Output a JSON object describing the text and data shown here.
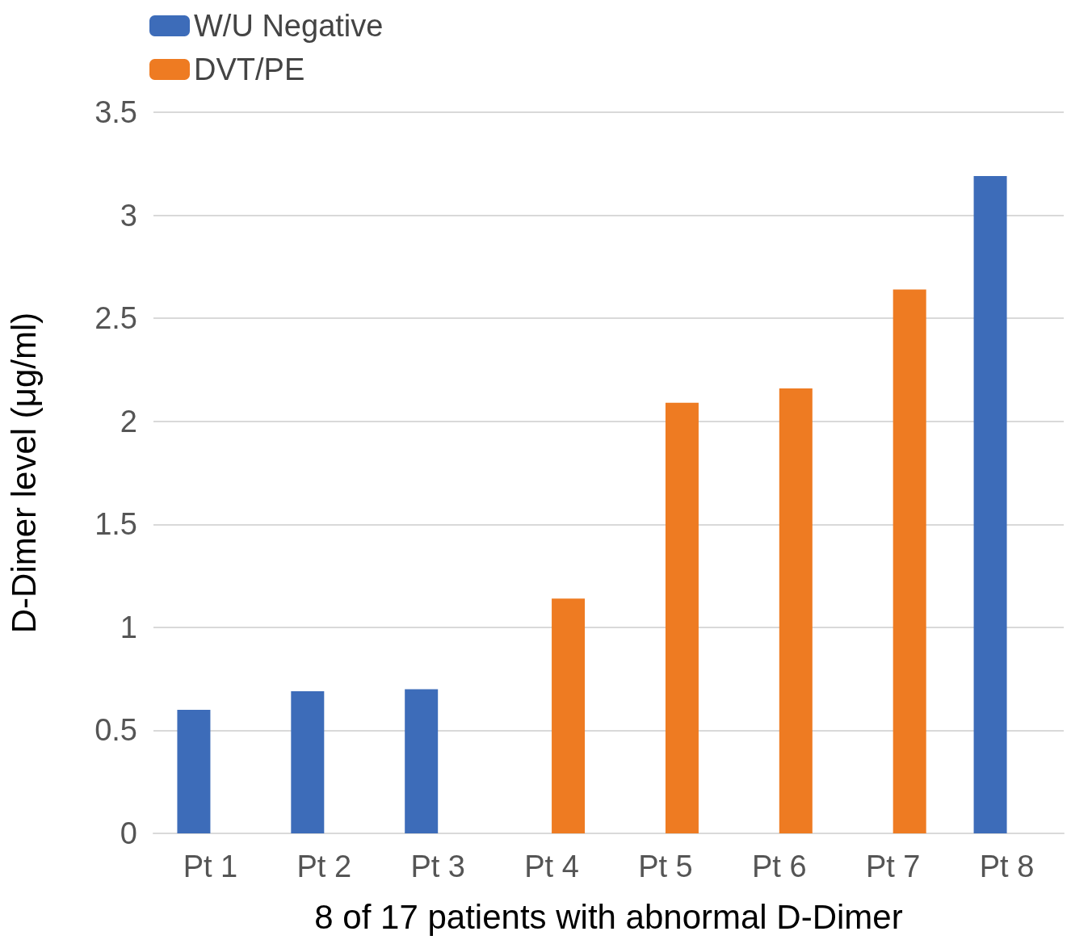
{
  "chart_data": {
    "type": "bar",
    "xlabel": "8 of 17 patients with abnormal D-Dimer",
    "ylabel": "D-Dimer level (μg/ml)",
    "categories": [
      "Pt 1",
      "Pt 2",
      "Pt 3",
      "Pt 4",
      "Pt 5",
      "Pt 6",
      "Pt 7",
      "Pt 8"
    ],
    "series": [
      {
        "name": "W/U Negative",
        "color": "#3d6cb9",
        "values": [
          0.6,
          0.69,
          0.7,
          null,
          null,
          null,
          null,
          3.19
        ]
      },
      {
        "name": "DVT/PE",
        "color": "#ee7b22",
        "values": [
          null,
          null,
          null,
          1.14,
          2.09,
          2.16,
          2.64,
          null
        ]
      }
    ],
    "ylim": [
      0,
      3.5
    ],
    "yticks": [
      0,
      0.5,
      1,
      1.5,
      2,
      2.5,
      3,
      3.5
    ],
    "grid": "y",
    "legend": "top left"
  }
}
